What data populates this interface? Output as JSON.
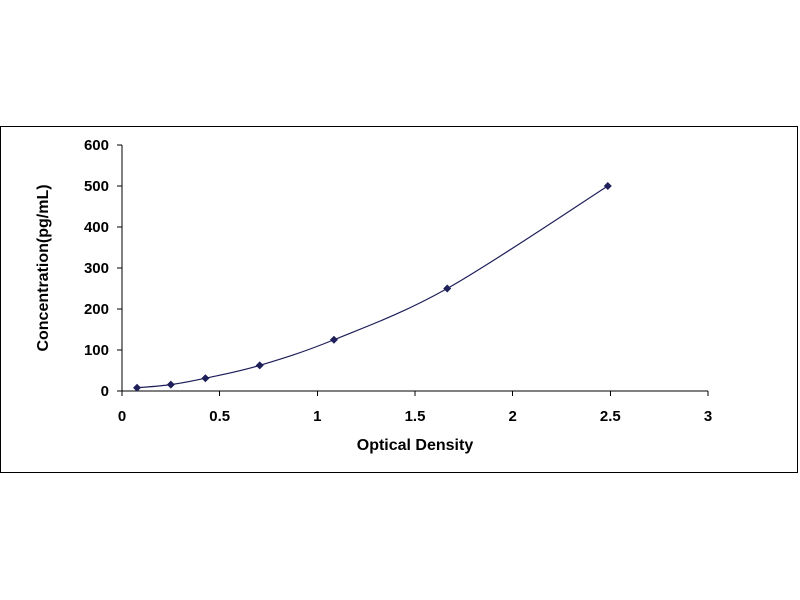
{
  "chart_data": {
    "type": "scatter",
    "title": "",
    "xlabel": "Optical Density",
    "ylabel": "Concentration(pg/mL)",
    "xlim": [
      0,
      3
    ],
    "ylim": [
      0,
      600
    ],
    "x_ticks": [
      "0",
      "0.5",
      "1",
      "1.5",
      "2",
      "2.5",
      "3"
    ],
    "y_ticks": [
      "0",
      "100",
      "200",
      "300",
      "400",
      "500",
      "600"
    ],
    "grid": false,
    "legend": "none",
    "fit": "smooth curve",
    "series": [
      {
        "x": [
          0.077,
          0.25,
          0.427,
          0.705,
          1.085,
          1.665,
          2.487
        ],
        "y": [
          7.8,
          15.6,
          31.2,
          62.5,
          125,
          250,
          500
        ]
      }
    ],
    "marker_color": "#1f1f5a",
    "line_color": "#1f1f5a"
  }
}
